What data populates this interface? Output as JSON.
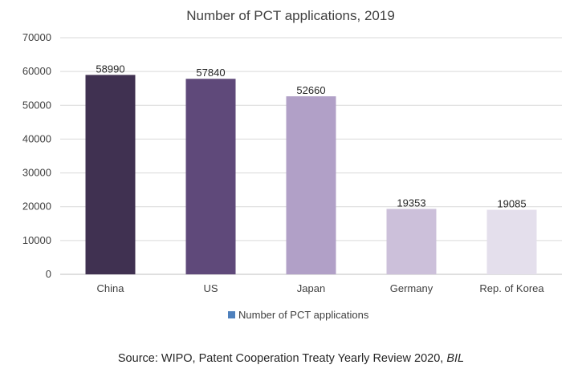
{
  "chart_data": {
    "type": "bar",
    "title": "Number of PCT applications, 2019",
    "categories": [
      "China",
      "US",
      "Japan",
      "Germany",
      "Rep. of Korea"
    ],
    "series": [
      {
        "name": "Number of PCT applications",
        "values": [
          58990,
          57840,
          52660,
          19353,
          19085
        ]
      }
    ],
    "bar_colors": [
      "#403151",
      "#5f497a",
      "#b1a0c7",
      "#ccc0da",
      "#e4dfec"
    ],
    "legend_color": "#4f81bd",
    "ylim": [
      0,
      70000
    ],
    "yticks": [
      "0",
      "10000",
      "20000",
      "30000",
      "40000",
      "50000",
      "60000",
      "70000"
    ],
    "data_labels": [
      "58990",
      "57840",
      "52660",
      "19353",
      "19085"
    ],
    "grid": true,
    "legend_position": "bottom"
  },
  "source": {
    "text": "Source: WIPO, Patent Cooperation Treaty Yearly Review 2020, ",
    "italic": "BIL"
  }
}
